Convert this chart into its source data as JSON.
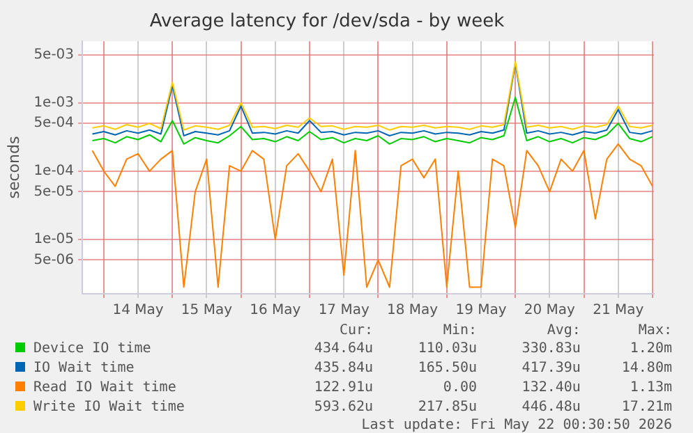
{
  "chart_data": {
    "type": "line",
    "title": "Average latency for /dev/sda - by week",
    "ylabel": "seconds",
    "log": "y",
    "grid": true,
    "legend": "bottom",
    "marker": "none",
    "line_style": "solid",
    "ylim": [
      1.6e-06,
      0.008
    ],
    "yticks": [
      {
        "value": 5e-06,
        "label": "5e-06"
      },
      {
        "value": 1e-05,
        "label": "1e-05"
      },
      {
        "value": 5e-05,
        "label": "5e-05"
      },
      {
        "value": 0.0001,
        "label": "1e-04"
      },
      {
        "value": 0.0005,
        "label": "5e-04"
      },
      {
        "value": 0.001,
        "label": "1e-03"
      },
      {
        "value": 0.005,
        "label": "5e-03"
      }
    ],
    "xlim": [
      "2026-05-13T16:30",
      "2026-05-22T00:30"
    ],
    "xticks": [
      {
        "value": "2026-05-14T00:00",
        "label": null
      },
      {
        "value": "2026-05-14T12:00",
        "label": "14 May"
      },
      {
        "value": "2026-05-15T00:00",
        "label": null
      },
      {
        "value": "2026-05-15T12:00",
        "label": "15 May"
      },
      {
        "value": "2026-05-16T00:00",
        "label": null
      },
      {
        "value": "2026-05-16T12:00",
        "label": "16 May"
      },
      {
        "value": "2026-05-17T00:00",
        "label": null
      },
      {
        "value": "2026-05-17T12:00",
        "label": "17 May"
      },
      {
        "value": "2026-05-18T00:00",
        "label": null
      },
      {
        "value": "2026-05-18T12:00",
        "label": "18 May"
      },
      {
        "value": "2026-05-19T00:00",
        "label": null
      },
      {
        "value": "2026-05-19T12:00",
        "label": "19 May"
      },
      {
        "value": "2026-05-20T00:00",
        "label": null
      },
      {
        "value": "2026-05-20T12:00",
        "label": "20 May"
      },
      {
        "value": "2026-05-21T00:00",
        "label": null
      },
      {
        "value": "2026-05-21T12:00",
        "label": "21 May"
      },
      {
        "value": "2026-05-22T00:00",
        "label": null
      }
    ],
    "x": [
      "2026-05-13T20:00",
      "2026-05-14T00:00",
      "2026-05-14T04:00",
      "2026-05-14T08:00",
      "2026-05-14T12:00",
      "2026-05-14T16:00",
      "2026-05-14T20:00",
      "2026-05-15T00:00",
      "2026-05-15T04:00",
      "2026-05-15T08:00",
      "2026-05-15T12:00",
      "2026-05-15T16:00",
      "2026-05-15T20:00",
      "2026-05-16T00:00",
      "2026-05-16T04:00",
      "2026-05-16T08:00",
      "2026-05-16T12:00",
      "2026-05-16T16:00",
      "2026-05-16T20:00",
      "2026-05-17T00:00",
      "2026-05-17T04:00",
      "2026-05-17T08:00",
      "2026-05-17T12:00",
      "2026-05-17T16:00",
      "2026-05-17T20:00",
      "2026-05-18T00:00",
      "2026-05-18T04:00",
      "2026-05-18T08:00",
      "2026-05-18T12:00",
      "2026-05-18T16:00",
      "2026-05-18T20:00",
      "2026-05-19T00:00",
      "2026-05-19T04:00",
      "2026-05-19T08:00",
      "2026-05-19T12:00",
      "2026-05-19T16:00",
      "2026-05-19T20:00",
      "2026-05-20T00:00",
      "2026-05-20T04:00",
      "2026-05-20T08:00",
      "2026-05-20T12:00",
      "2026-05-20T16:00",
      "2026-05-20T20:00",
      "2026-05-21T00:00",
      "2026-05-21T04:00",
      "2026-05-21T08:00",
      "2026-05-21T12:00",
      "2026-05-21T16:00",
      "2026-05-21T20:00",
      "2026-05-22T00:00"
    ],
    "series": [
      {
        "name": "Device IO time",
        "color": "#00cc00",
        "values": [
          0.00028,
          0.0003,
          0.00026,
          0.00032,
          0.00029,
          0.00034,
          0.00027,
          0.00055,
          0.00025,
          0.00031,
          0.00028,
          0.00026,
          0.00033,
          0.00045,
          0.00029,
          0.0003,
          0.00027,
          0.00032,
          0.00028,
          0.00038,
          0.00029,
          0.00031,
          0.00026,
          0.0003,
          0.00028,
          0.00033,
          0.00025,
          0.0003,
          0.00029,
          0.00032,
          0.00027,
          0.0003,
          0.00028,
          0.00026,
          0.00031,
          0.00029,
          0.00033,
          0.0012,
          0.00028,
          0.00032,
          0.00027,
          0.0003,
          0.00026,
          0.00031,
          0.00029,
          0.00034,
          0.0005,
          0.0003,
          0.00027,
          0.00032
        ]
      },
      {
        "name": "IO Wait time",
        "color": "#0066b3",
        "values": [
          0.00035,
          0.00038,
          0.00034,
          0.00039,
          0.00036,
          0.0004,
          0.00035,
          0.0018,
          0.00033,
          0.00038,
          0.00036,
          0.00034,
          0.00039,
          0.0009,
          0.00036,
          0.00037,
          0.00035,
          0.00039,
          0.00036,
          0.00055,
          0.00037,
          0.00038,
          0.00034,
          0.00037,
          0.00036,
          0.00039,
          0.00033,
          0.00037,
          0.00036,
          0.00039,
          0.00035,
          0.00037,
          0.00036,
          0.00034,
          0.00038,
          0.00036,
          0.0004,
          0.0038,
          0.00036,
          0.00039,
          0.00035,
          0.00037,
          0.00034,
          0.00038,
          0.00036,
          0.0004,
          0.0008,
          0.00037,
          0.00035,
          0.00039
        ]
      },
      {
        "name": "Read IO Wait time",
        "color": "#ff8000",
        "values": [
          0.0002,
          0.0001,
          6e-05,
          0.00015,
          0.00018,
          0.0001,
          0.00015,
          0.0002,
          2e-06,
          5e-05,
          0.00015,
          2e-06,
          0.00012,
          0.0001,
          0.0002,
          0.00015,
          1e-05,
          0.00012,
          0.00018,
          0.0001,
          5e-05,
          0.00015,
          3e-06,
          0.0002,
          2e-06,
          5e-06,
          2e-06,
          0.00012,
          0.00015,
          8e-05,
          0.00015,
          2e-06,
          0.0001,
          2e-06,
          2e-06,
          0.00015,
          0.00012,
          1.5e-05,
          0.0002,
          0.00012,
          5e-05,
          0.00015,
          0.0001,
          0.0002,
          2e-05,
          0.00015,
          0.00025,
          0.00015,
          0.00012,
          6e-05
        ]
      },
      {
        "name": "Write IO Wait time",
        "color": "#ffcc00",
        "values": [
          0.00043,
          0.00046,
          0.00041,
          0.00048,
          0.00044,
          0.0005,
          0.00042,
          0.002,
          0.0004,
          0.00046,
          0.00044,
          0.00041,
          0.00047,
          0.001,
          0.00044,
          0.00045,
          0.00042,
          0.00047,
          0.00044,
          0.0006,
          0.00045,
          0.00046,
          0.00041,
          0.00045,
          0.00044,
          0.00047,
          0.0004,
          0.00045,
          0.00044,
          0.00047,
          0.00043,
          0.00045,
          0.00044,
          0.00041,
          0.00046,
          0.00044,
          0.00048,
          0.004,
          0.00044,
          0.00047,
          0.00043,
          0.00045,
          0.00041,
          0.00046,
          0.00044,
          0.00048,
          0.0009,
          0.00045,
          0.00043,
          0.00047
        ]
      }
    ],
    "annotations": [
      "Cur:",
      "Min:",
      "Avg:",
      "Max:",
      "434.64u",
      "110.03u",
      "330.83u",
      "1.20m",
      "435.84u",
      "165.50u",
      "417.39u",
      "14.80m",
      "122.91u",
      "0.00",
      "132.40u",
      "1.13m",
      "593.62u",
      "217.85u",
      "446.48u",
      "17.21m",
      "Last update: Fri May 22 00:30:50 2026"
    ]
  }
}
